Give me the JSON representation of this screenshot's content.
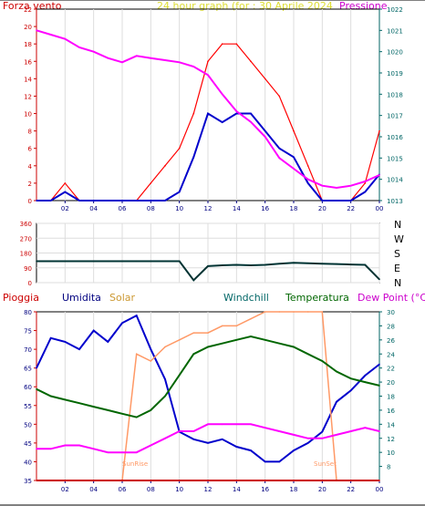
{
  "header": {
    "left_label": "Forza vento",
    "title": "24 hour graph (for : 30 Aprile 2024",
    "right_label": "Pressione"
  },
  "middle": {
    "dir_labels": [
      "N",
      "W",
      "S",
      "E",
      "N"
    ]
  },
  "bottom_legend": {
    "rain": "Pioggia",
    "humidity": "Umidita",
    "solar": "Solar",
    "windchill": "Windchill",
    "temperature": "Temperatura",
    "dewpoint": "Dew Point (°C)"
  },
  "colors": {
    "wind": "#ff0000",
    "gust": "#0000cc",
    "pressure": "#ff00ff",
    "direction": "#003333",
    "humidity": "#0000cc",
    "solar": "#ff9966",
    "temperature": "#006600",
    "dewpoint": "#ff00ff",
    "rain": "#cc0000",
    "axis_left": "#cc0000",
    "axis_right": "#006666",
    "axis_bottom": "#000080"
  },
  "chart_data": [
    {
      "type": "line",
      "xlabel": "",
      "x_ticks": [
        "02",
        "04",
        "06",
        "08",
        "10",
        "12",
        "14",
        "16",
        "18",
        "20",
        "22",
        "00"
      ],
      "x": [
        0,
        1,
        2,
        3,
        4,
        5,
        6,
        7,
        8,
        9,
        10,
        11,
        12,
        13,
        14,
        15,
        16,
        17,
        18,
        19,
        20,
        21,
        22,
        23,
        24
      ],
      "ylim_left": [
        0,
        22
      ],
      "left_ticks": [
        0,
        2,
        4,
        6,
        8,
        10,
        12,
        14,
        16,
        18,
        20,
        22
      ],
      "ylim_right": [
        1013,
        1022
      ],
      "right_ticks": [
        1013,
        1014,
        1015,
        1016,
        1017,
        1018,
        1019,
        1020,
        1021,
        1022
      ],
      "series": [
        {
          "name": "Forza vento",
          "axis": "left",
          "values": [
            0,
            0,
            2,
            0,
            0,
            0,
            0,
            0,
            2,
            4,
            6,
            10,
            16,
            18,
            18,
            16,
            14,
            12,
            8,
            4,
            0,
            0,
            0,
            2,
            8
          ]
        },
        {
          "axis": "left",
          "values": [
            0,
            0,
            1,
            0,
            0,
            0,
            0,
            0,
            0,
            0,
            1,
            5,
            10,
            9,
            10,
            10,
            8,
            6,
            5,
            2,
            0,
            0,
            0,
            1,
            3
          ]
        },
        {
          "name": "Pressione",
          "axis": "right",
          "values": [
            1021.0,
            1020.8,
            1020.6,
            1020.2,
            1020.0,
            1019.7,
            1019.5,
            1019.8,
            1019.7,
            1019.6,
            1019.5,
            1019.3,
            1018.9,
            1018.0,
            1017.2,
            1016.7,
            1016.0,
            1015.0,
            1014.5,
            1014.0,
            1013.7,
            1013.6,
            1013.7,
            1013.9,
            1014.2
          ]
        }
      ]
    },
    {
      "type": "line",
      "x": [
        0,
        1,
        2,
        3,
        4,
        5,
        6,
        7,
        8,
        9,
        10,
        11,
        12,
        13,
        14,
        15,
        16,
        17,
        18,
        19,
        20,
        21,
        22,
        23,
        24
      ],
      "ylim": [
        0,
        360
      ],
      "y_ticks": [
        0,
        90,
        180,
        270,
        360
      ],
      "series": [
        {
          "values": [
            130,
            130,
            130,
            130,
            130,
            130,
            130,
            130,
            130,
            130,
            130,
            15,
            100,
            105,
            108,
            105,
            108,
            115,
            120,
            118,
            115,
            113,
            110,
            108,
            20
          ]
        }
      ]
    },
    {
      "type": "line",
      "x": [
        0,
        1,
        2,
        3,
        4,
        5,
        6,
        7,
        8,
        9,
        10,
        11,
        12,
        13,
        14,
        15,
        16,
        17,
        18,
        19,
        20,
        21,
        22,
        23,
        24
      ],
      "ylim_left": [
        35,
        80
      ],
      "left_ticks": [
        35,
        40,
        45,
        50,
        55,
        60,
        65,
        70,
        75,
        80
      ],
      "ylim_right": [
        6,
        30
      ],
      "right_ticks": [
        8,
        10,
        12,
        14,
        16,
        18,
        20,
        22,
        24,
        26,
        28,
        30
      ],
      "annotations": [
        "SunRise",
        "SunSet"
      ],
      "series": [
        {
          "name": "Umidita",
          "axis": "left",
          "values": [
            65,
            73,
            72,
            70,
            75,
            72,
            77,
            79,
            70,
            62,
            48,
            46,
            45,
            46,
            44,
            43,
            40,
            40,
            43,
            45,
            48,
            56,
            59,
            63,
            66
          ]
        },
        {
          "name": "Solar",
          "axis": "right",
          "values": [
            6,
            6,
            6,
            6,
            6,
            6,
            6,
            24,
            23,
            25,
            26,
            27,
            27,
            28,
            28,
            29,
            30,
            30,
            30,
            30,
            30,
            6,
            6,
            6,
            6
          ]
        },
        {
          "name": "Temperatura",
          "axis": "right",
          "values": [
            19,
            18,
            17.5,
            17,
            16.5,
            16,
            15.5,
            15,
            16,
            18,
            21,
            24,
            25,
            25.5,
            26,
            26.5,
            26,
            25.5,
            25,
            24,
            23,
            21.5,
            20.5,
            20,
            19.5
          ]
        },
        {
          "name": "Dew Point (°C)",
          "axis": "right",
          "values": [
            10.5,
            10.5,
            11,
            11,
            10.5,
            10,
            10,
            10,
            11,
            12,
            13,
            13,
            14,
            14,
            14,
            14,
            13.5,
            13,
            12.5,
            12,
            12,
            12.5,
            13,
            13.5,
            13
          ]
        },
        {
          "name": "Pioggia",
          "axis": "left",
          "values": [
            35,
            35,
            35,
            35,
            35,
            35,
            35,
            35,
            35,
            35,
            35,
            35,
            35,
            35,
            35,
            35,
            35,
            35,
            35,
            35,
            35,
            35,
            35,
            35,
            35
          ]
        }
      ]
    }
  ]
}
